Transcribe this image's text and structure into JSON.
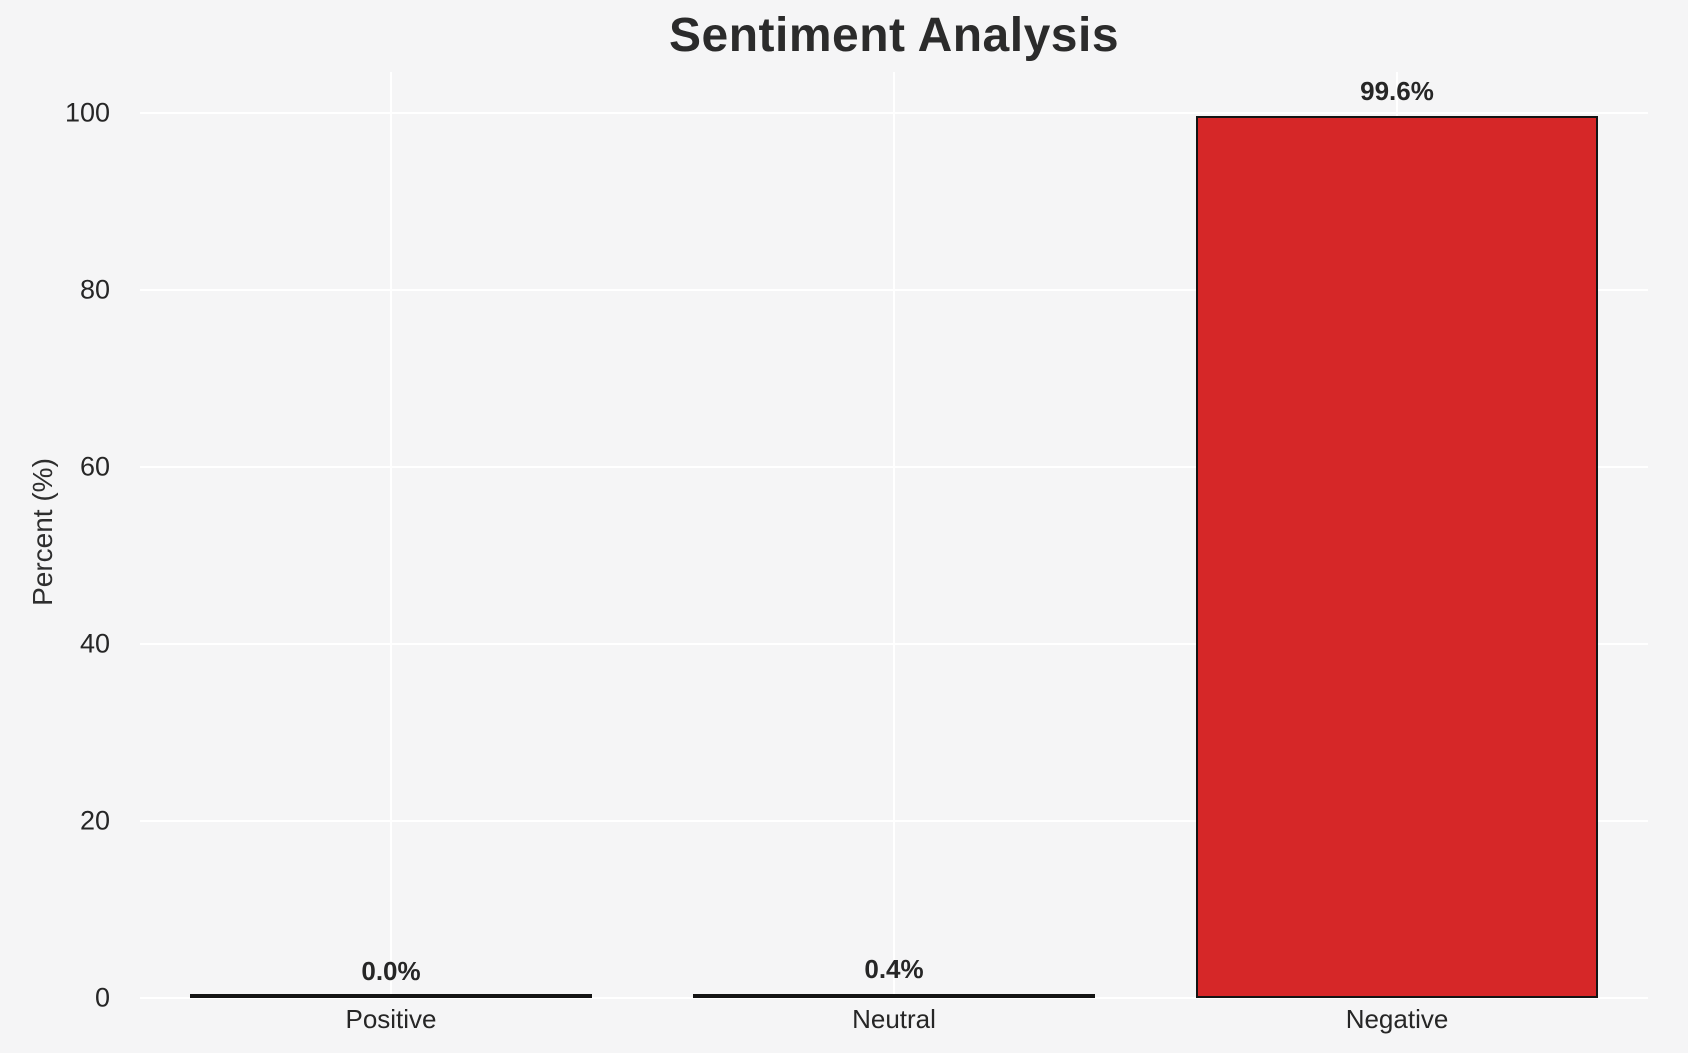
{
  "chart_data": {
    "type": "bar",
    "title": "Sentiment Analysis",
    "xlabel": "",
    "ylabel": "Percent (%)",
    "categories": [
      "Positive",
      "Neutral",
      "Negative"
    ],
    "values": [
      0.0,
      0.4,
      99.6
    ],
    "value_labels": [
      "0.0%",
      "0.4%",
      "99.6%"
    ],
    "yticks": [
      "0",
      "20",
      "40",
      "60",
      "80",
      "100"
    ],
    "ytick_values": [
      0,
      20,
      40,
      60,
      80,
      100
    ],
    "ylim": [
      0,
      104.6
    ],
    "bar_width_fraction": 0.8,
    "grid": "on",
    "gridline_color": "#ffffff",
    "background_color": "#f5f5f6",
    "bar_fill_colors": [
      "#f5f5f6",
      "#141414",
      "#d62728"
    ],
    "bar_edge_color": "#141414",
    "legend": "none"
  }
}
